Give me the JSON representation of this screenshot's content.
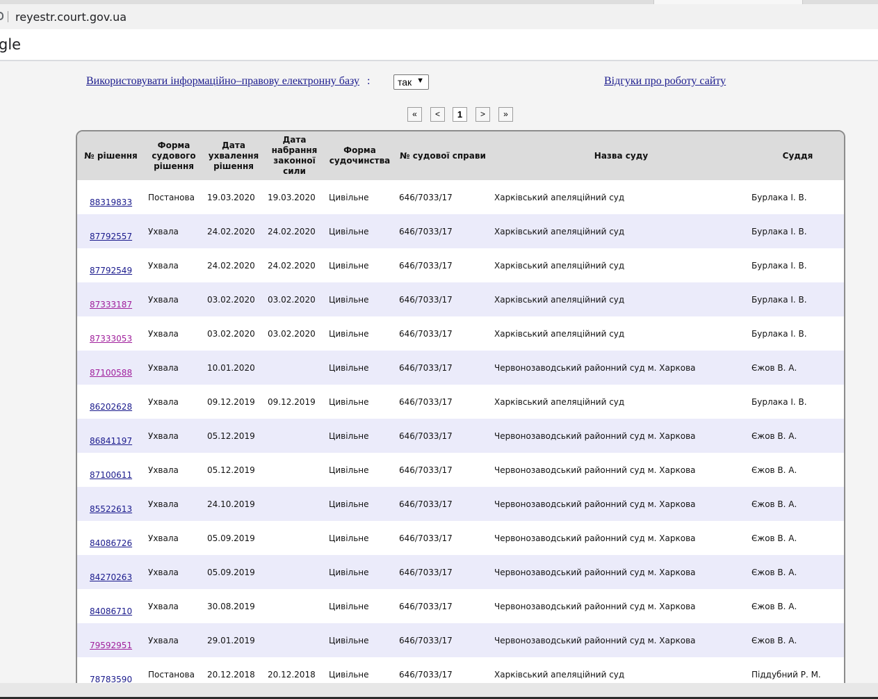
{
  "browser": {
    "url": "reyestr.court.gov.ua",
    "title_fragment": "gle"
  },
  "toolbar": {
    "use_base_link": "Використовувати інформаційно–правову електронну базу",
    "use_base_colon": ":",
    "use_base_value": "так",
    "feedback_link": "Відгуки про роботу сайту"
  },
  "pager": {
    "first": "«",
    "prev": "<",
    "current": "1",
    "next": ">",
    "last": "»"
  },
  "table": {
    "headers": [
      "№ рішення",
      "Форма судового рішення",
      "Дата ухвалення рішення",
      "Дата набрання законної сили",
      "Форма судочинства",
      "№ судової справи",
      "Назва суду",
      "Суддя"
    ],
    "rows": [
      {
        "id": "88319833",
        "form": "Постанова",
        "date": "19.03.2020",
        "legal": "19.03.2020",
        "kind": "Цивільне",
        "case": "646/7033/17",
        "court": "Харківський апеляційний суд",
        "judge": "Бурлака І. В.",
        "visited": false
      },
      {
        "id": "87792557",
        "form": "Ухвала",
        "date": "24.02.2020",
        "legal": "24.02.2020",
        "kind": "Цивільне",
        "case": "646/7033/17",
        "court": "Харківський апеляційний суд",
        "judge": "Бурлака І. В.",
        "visited": false
      },
      {
        "id": "87792549",
        "form": "Ухвала",
        "date": "24.02.2020",
        "legal": "24.02.2020",
        "kind": "Цивільне",
        "case": "646/7033/17",
        "court": "Харківський апеляційний суд",
        "judge": "Бурлака І. В.",
        "visited": false
      },
      {
        "id": "87333187",
        "form": "Ухвала",
        "date": "03.02.2020",
        "legal": "03.02.2020",
        "kind": "Цивільне",
        "case": "646/7033/17",
        "court": "Харківський апеляційний суд",
        "judge": "Бурлака І. В.",
        "visited": true
      },
      {
        "id": "87333053",
        "form": "Ухвала",
        "date": "03.02.2020",
        "legal": "03.02.2020",
        "kind": "Цивільне",
        "case": "646/7033/17",
        "court": "Харківський апеляційний суд",
        "judge": "Бурлака І. В.",
        "visited": true
      },
      {
        "id": "87100588",
        "form": "Ухвала",
        "date": "10.01.2020",
        "legal": "",
        "kind": "Цивільне",
        "case": "646/7033/17",
        "court": "Червонозаводський районний суд м. Харкова",
        "judge": "Єжов В. А.",
        "visited": true
      },
      {
        "id": "86202628",
        "form": "Ухвала",
        "date": "09.12.2019",
        "legal": "09.12.2019",
        "kind": "Цивільне",
        "case": "646/7033/17",
        "court": "Харківський апеляційний суд",
        "judge": "Бурлака І. В.",
        "visited": false
      },
      {
        "id": "86841197",
        "form": "Ухвала",
        "date": "05.12.2019",
        "legal": "",
        "kind": "Цивільне",
        "case": "646/7033/17",
        "court": "Червонозаводський районний суд м. Харкова",
        "judge": "Єжов В. А.",
        "visited": false
      },
      {
        "id": "87100611",
        "form": "Ухвала",
        "date": "05.12.2019",
        "legal": "",
        "kind": "Цивільне",
        "case": "646/7033/17",
        "court": "Червонозаводський районний суд м. Харкова",
        "judge": "Єжов В. А.",
        "visited": false
      },
      {
        "id": "85522613",
        "form": "Ухвала",
        "date": "24.10.2019",
        "legal": "",
        "kind": "Цивільне",
        "case": "646/7033/17",
        "court": "Червонозаводський районний суд м. Харкова",
        "judge": "Єжов В. А.",
        "visited": false
      },
      {
        "id": "84086726",
        "form": "Ухвала",
        "date": "05.09.2019",
        "legal": "",
        "kind": "Цивільне",
        "case": "646/7033/17",
        "court": "Червонозаводський районний суд м. Харкова",
        "judge": "Єжов В. А.",
        "visited": false
      },
      {
        "id": "84270263",
        "form": "Ухвала",
        "date": "05.09.2019",
        "legal": "",
        "kind": "Цивільне",
        "case": "646/7033/17",
        "court": "Червонозаводський районний суд м. Харкова",
        "judge": "Єжов В. А.",
        "visited": false
      },
      {
        "id": "84086710",
        "form": "Ухвала",
        "date": "30.08.2019",
        "legal": "",
        "kind": "Цивільне",
        "case": "646/7033/17",
        "court": "Червонозаводський районний суд м. Харкова",
        "judge": "Єжов В. А.",
        "visited": false
      },
      {
        "id": "79592951",
        "form": "Ухвала",
        "date": "29.01.2019",
        "legal": "",
        "kind": "Цивільне",
        "case": "646/7033/17",
        "court": "Червонозаводський районний суд м. Харкова",
        "judge": "Єжов В. А.",
        "visited": true
      },
      {
        "id": "78783590",
        "form": "Постанова",
        "date": "20.12.2018",
        "legal": "20.12.2018",
        "kind": "Цивільне",
        "case": "646/7033/17",
        "court": "Харківський апеляційний суд",
        "judge": "Піддубний Р. М.",
        "visited": false
      }
    ]
  },
  "colors": {
    "link": "#1a1a8c",
    "visited_link": "#a0209c",
    "header_bg": "#dcdcdc",
    "stripe_bg": "#ebebfa"
  }
}
